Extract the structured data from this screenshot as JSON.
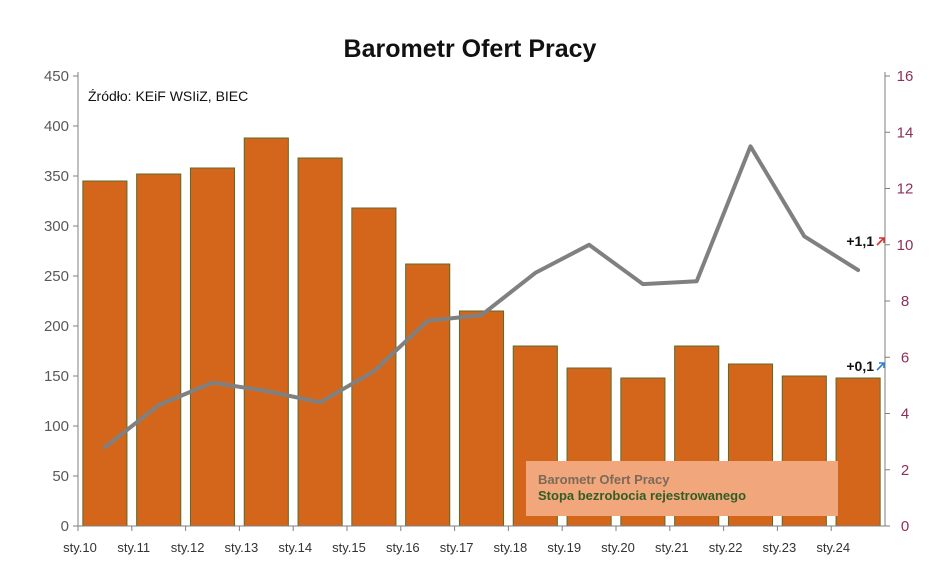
{
  "chart_data": {
    "type": "bar",
    "title": "Barometr Ofert Pracy",
    "source": "Źródło: KEiF WSIiZ, BIEC",
    "x_ticks": [
      "sty.10",
      "sty.11",
      "sty.12",
      "sty.13",
      "sty.14",
      "sty.15",
      "sty.16",
      "sty.17",
      "sty.18",
      "sty.19",
      "sty.20",
      "sty.21",
      "sty.22",
      "sty.23",
      "sty.24"
    ],
    "y_left": {
      "ticks": [
        "0",
        "50",
        "100",
        "150",
        "200",
        "250",
        "300",
        "350",
        "400",
        "450"
      ],
      "range": [
        0,
        450
      ]
    },
    "y_right": {
      "ticks": [
        "0",
        "2",
        "4",
        "6",
        "8",
        "10",
        "12",
        "14",
        "16"
      ],
      "range": [
        0,
        16
      ]
    },
    "series": [
      {
        "name": "Barometr Ofert Pracy",
        "type": "bar",
        "axis": "left",
        "color": "#d4661c",
        "x": [
          "sty.10",
          "sty.11",
          "sty.12",
          "sty.13",
          "sty.14",
          "sty.15",
          "sty.16",
          "sty.17",
          "sty.18",
          "sty.19",
          "sty.20",
          "sty.21",
          "sty.22",
          "sty.23",
          "sty.24"
        ],
        "values": [
          345,
          352,
          358,
          388,
          368,
          318,
          262,
          215,
          180,
          158,
          148,
          180,
          162,
          150,
          148
        ]
      },
      {
        "name": "Stopa bezrobocia rejestrowanego",
        "type": "line",
        "axis": "right",
        "color": "#808080",
        "x": [
          "sty.10",
          "sty.11",
          "sty.12",
          "sty.13",
          "sty.14",
          "sty.15",
          "sty.16",
          "sty.17",
          "sty.18",
          "sty.19",
          "sty.20",
          "sty.21",
          "sty.22",
          "sty.23",
          "sty.24"
        ],
        "values": [
          2.8,
          4.3,
          5.1,
          4.8,
          4.4,
          5.5,
          7.3,
          7.5,
          9.0,
          10.0,
          8.6,
          8.7,
          13.5,
          10.3,
          9.1
        ]
      }
    ],
    "annotations": [
      {
        "text": "+1,1",
        "arrow_color": "#e0302a",
        "series": "Stopa bezrobocia rejestrowanego"
      },
      {
        "text": "+0,1",
        "arrow_color": "#2f7fd8",
        "series": "Barometr Ofert Pracy"
      }
    ],
    "legend": {
      "placement": "bottom-right",
      "background": "#f2a67c",
      "items": [
        {
          "label": "Barometr Ofert Pracy",
          "color": "#7a6a5a"
        },
        {
          "label": "Stopa bezrobocia rejestrowanego",
          "color": "#2f5f24"
        }
      ]
    },
    "grid": false
  }
}
